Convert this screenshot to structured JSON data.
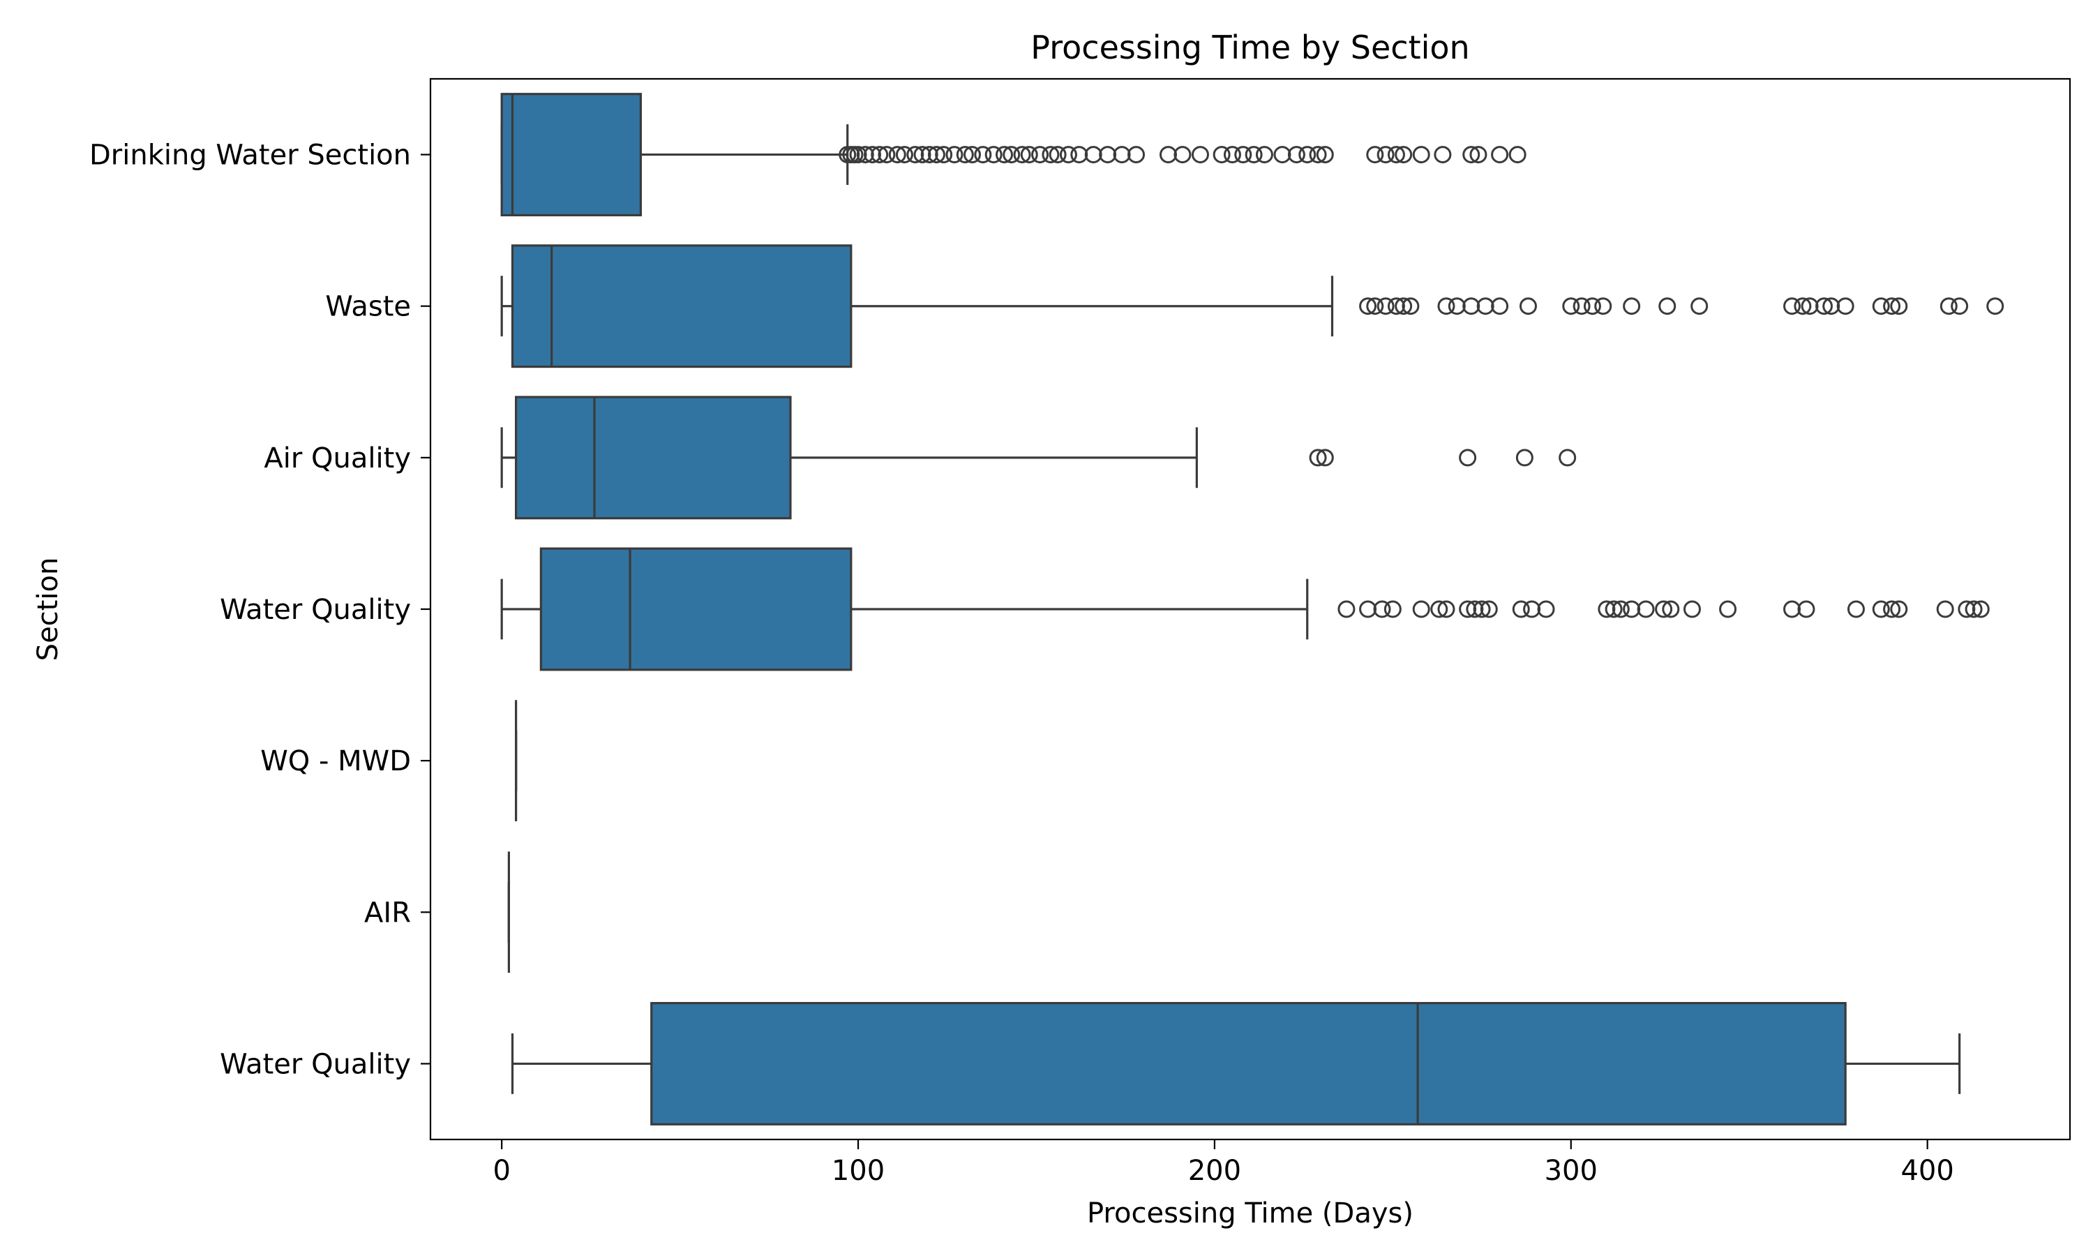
{
  "chart_data": {
    "type": "box",
    "orientation": "horizontal",
    "title": "Processing Time by Section",
    "xlabel": "Processing Time (Days)",
    "ylabel": "Section",
    "xlim": [
      -20,
      440
    ],
    "xticks": [
      0,
      100,
      200,
      300,
      400
    ],
    "color": "#3274a1",
    "edge_color": "#3b3b3b",
    "grid": false,
    "legend": "none",
    "series": [
      {
        "category": "Drinking Water Section",
        "whisker_low": 0,
        "q1": 0,
        "median": 3,
        "q3": 39,
        "whisker_high": 97,
        "outliers": [
          97,
          98,
          99,
          100,
          102,
          104,
          106,
          108,
          111,
          113,
          116,
          118,
          120,
          122,
          124,
          127,
          130,
          132,
          135,
          138,
          141,
          143,
          146,
          148,
          151,
          154,
          156,
          159,
          162,
          166,
          170,
          174,
          178,
          187,
          191,
          196,
          202,
          205,
          208,
          211,
          214,
          219,
          223,
          226,
          229,
          231,
          245,
          248,
          251,
          253,
          258,
          264,
          272,
          274,
          280,
          285
        ]
      },
      {
        "category": "Waste",
        "whisker_low": 0,
        "q1": 3,
        "median": 14,
        "q3": 98,
        "whisker_high": 233,
        "outliers": [
          243,
          245,
          248,
          251,
          253,
          255,
          265,
          268,
          272,
          276,
          280,
          288,
          300,
          303,
          306,
          309,
          317,
          327,
          336,
          362,
          365,
          367,
          371,
          373,
          377,
          387,
          390,
          392,
          406,
          409,
          419
        ]
      },
      {
        "category": "Air Quality",
        "whisker_low": 0,
        "q1": 4,
        "median": 26,
        "q3": 81,
        "whisker_high": 195,
        "outliers": [
          229,
          231,
          271,
          287,
          299
        ]
      },
      {
        "category": "Water Quality ",
        "whisker_low": 0,
        "q1": 11,
        "median": 36,
        "q3": 98,
        "whisker_high": 226,
        "outliers": [
          237,
          243,
          247,
          250,
          258,
          263,
          265,
          271,
          273,
          275,
          277,
          286,
          289,
          293,
          310,
          312,
          314,
          317,
          321,
          326,
          328,
          334,
          344,
          362,
          366,
          380,
          387,
          390,
          392,
          405,
          411,
          413,
          415
        ]
      },
      {
        "category": "WQ - MWD",
        "whisker_low": 4,
        "q1": 4,
        "median": 4,
        "q3": 4,
        "whisker_high": 4,
        "outliers": []
      },
      {
        "category": "AIR",
        "whisker_low": 2,
        "q1": 2,
        "median": 2,
        "q3": 2,
        "whisker_high": 2,
        "outliers": []
      },
      {
        "category": "Water Quality",
        "whisker_low": 3,
        "q1": 42,
        "median": 257,
        "q3": 377,
        "whisker_high": 409,
        "outliers": []
      }
    ]
  }
}
